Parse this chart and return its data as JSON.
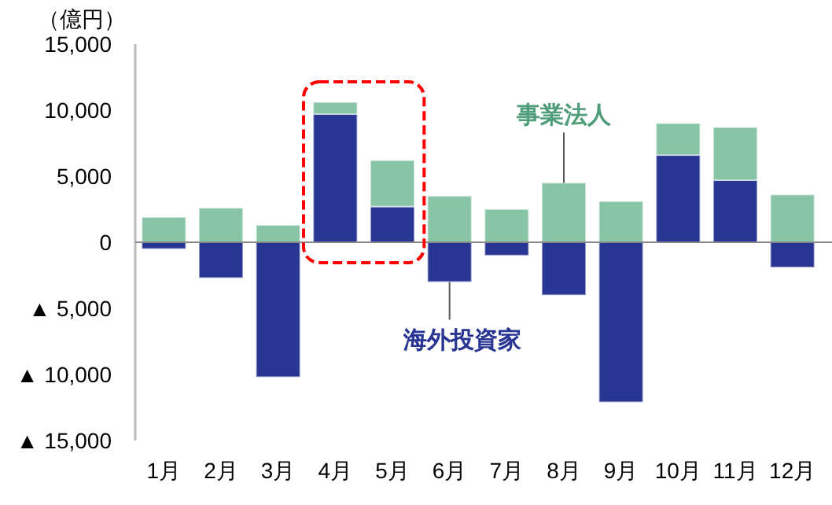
{
  "chart_data": {
    "type": "bar",
    "stacked": true,
    "ylabel": "（億円）",
    "categories": [
      "1月",
      "2月",
      "3月",
      "4月",
      "5月",
      "6月",
      "7月",
      "8月",
      "9月",
      "10月",
      "11月",
      "12月"
    ],
    "series": [
      {
        "name": "海外投資家",
        "color": "#283593",
        "values": [
          -500,
          -2700,
          -10200,
          9700,
          2700,
          -3000,
          -1000,
          -4000,
          -12100,
          6600,
          4700,
          -1900
        ]
      },
      {
        "name": "事業法人",
        "color": "#88c4a6",
        "values": [
          1900,
          2600,
          1300,
          900,
          3500,
          3500,
          2500,
          4500,
          3100,
          2400,
          4000,
          3600
        ]
      }
    ],
    "ylim": [
      -15000,
      15000
    ],
    "yticks": [
      {
        "value": -15000,
        "label": "▲ 15,000"
      },
      {
        "value": -10000,
        "label": "▲ 10,000"
      },
      {
        "value": -5000,
        "label": "▲ 5,000"
      },
      {
        "value": 0,
        "label": "0"
      },
      {
        "value": 5000,
        "label": "5,000"
      },
      {
        "value": 10000,
        "label": "10,000"
      },
      {
        "value": 15000,
        "label": "15,000"
      }
    ]
  }
}
